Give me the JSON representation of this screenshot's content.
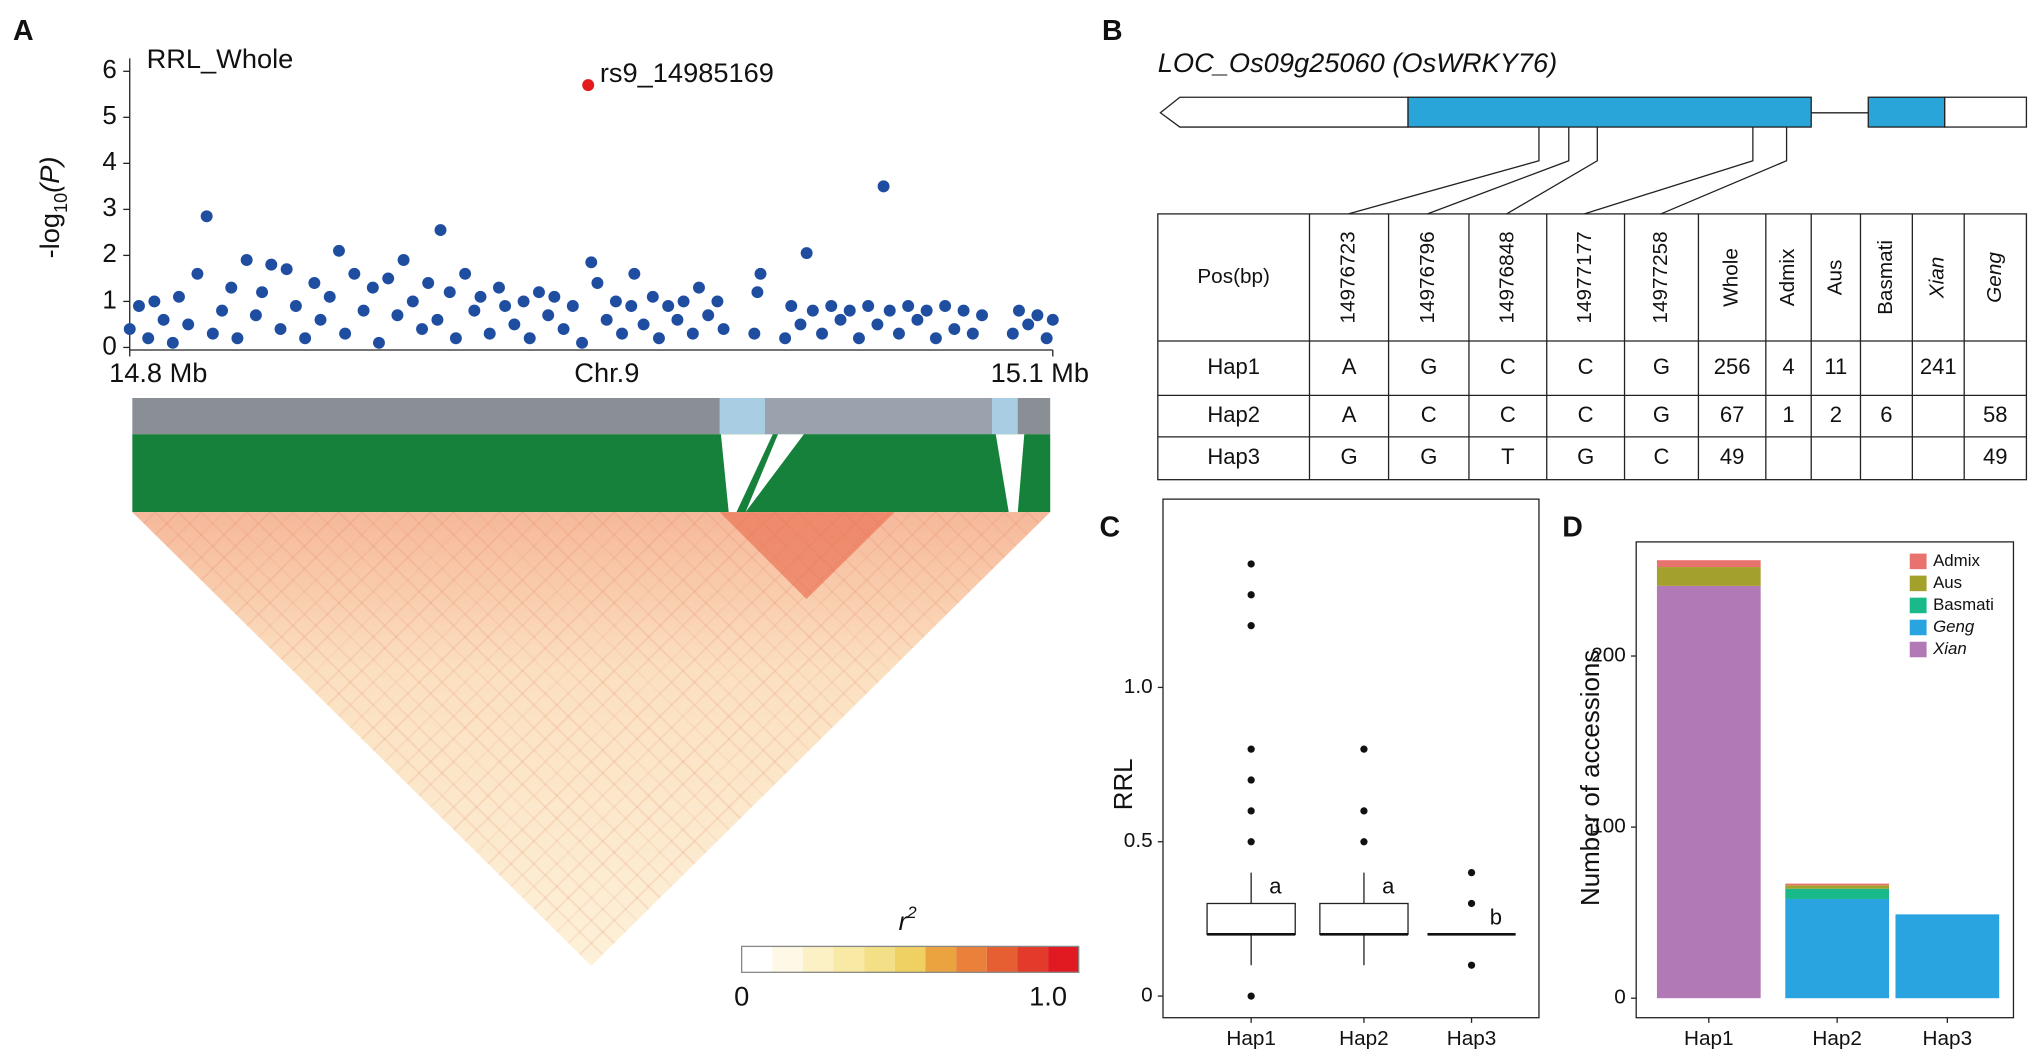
{
  "panels": [
    "A",
    "B",
    "C",
    "D"
  ],
  "chart_data": [
    {
      "type": "scatter",
      "title": "RRL_Whole",
      "xlabel": "Chr.9",
      "ylabel": [
        "-log",
        "10",
        "(P)"
      ],
      "xlim": [
        14.8,
        15.1
      ],
      "xticks": [
        {
          "value": 14.8,
          "label": "14.8 Mb"
        },
        {
          "value": 15.1,
          "label": "15.1 Mb"
        }
      ],
      "ylim": [
        0,
        6
      ],
      "yticks": [
        0,
        1,
        2,
        3,
        4,
        5,
        6
      ],
      "color": "#1f4ea1",
      "x": [
        14.8,
        14.803,
        14.806,
        14.808,
        14.811,
        14.814,
        14.816,
        14.819,
        14.822,
        14.825,
        14.827,
        14.83,
        14.833,
        14.835,
        14.838,
        14.841,
        14.843,
        14.846,
        14.849,
        14.851,
        14.854,
        14.857,
        14.86,
        14.862,
        14.865,
        14.868,
        14.87,
        14.873,
        14.876,
        14.879,
        14.881,
        14.884,
        14.887,
        14.889,
        14.892,
        14.895,
        14.897,
        14.9,
        14.901,
        14.904,
        14.906,
        14.909,
        14.912,
        14.914,
        14.917,
        14.92,
        14.922,
        14.925,
        14.928,
        14.93,
        14.933,
        14.936,
        14.938,
        14.941,
        14.944,
        14.947,
        14.95,
        14.952,
        14.955,
        14.958,
        14.96,
        14.963,
        14.964,
        14.967,
        14.97,
        14.972,
        14.975,
        14.978,
        14.98,
        14.983,
        14.985,
        14.988,
        14.991,
        14.993,
        15.003,
        15.004,
        15.005,
        15.013,
        15.015,
        15.018,
        15.02,
        15.022,
        15.025,
        15.028,
        15.031,
        15.034,
        15.037,
        15.04,
        15.043,
        15.045,
        15.047,
        15.05,
        15.053,
        15.056,
        15.059,
        15.062,
        15.065,
        15.068,
        15.071,
        15.074,
        15.077,
        15.087,
        15.089,
        15.092,
        15.095,
        15.098,
        15.1
      ],
      "values": [
        0.4,
        0.9,
        0.2,
        1.0,
        0.6,
        0.1,
        1.1,
        0.5,
        1.6,
        2.85,
        0.3,
        0.8,
        1.3,
        0.2,
        1.9,
        0.7,
        1.2,
        1.8,
        0.4,
        1.7,
        0.9,
        0.2,
        1.4,
        0.6,
        1.1,
        2.1,
        0.3,
        1.6,
        0.8,
        1.3,
        0.1,
        1.5,
        0.7,
        1.9,
        1.0,
        0.4,
        1.4,
        0.6,
        2.55,
        1.2,
        0.2,
        1.6,
        0.8,
        1.1,
        0.3,
        1.3,
        0.9,
        0.5,
        1.0,
        0.2,
        1.2,
        0.7,
        1.1,
        0.4,
        0.9,
        0.1,
        1.85,
        1.4,
        0.6,
        1.0,
        0.3,
        0.9,
        1.6,
        0.5,
        1.1,
        0.2,
        0.9,
        0.6,
        1.0,
        0.3,
        1.3,
        0.7,
        1.0,
        0.4,
        0.3,
        1.2,
        1.6,
        0.2,
        0.9,
        0.5,
        2.05,
        0.8,
        0.3,
        0.9,
        0.6,
        0.8,
        0.2,
        0.9,
        0.5,
        3.5,
        0.8,
        0.3,
        0.9,
        0.6,
        0.8,
        0.2,
        0.9,
        0.4,
        0.8,
        0.3,
        0.7,
        0.3,
        0.8,
        0.5,
        0.7,
        0.2,
        0.6
      ],
      "highlight": {
        "label": "rs9_14985169",
        "x": 14.949,
        "value": 5.7,
        "color": "#e3191c"
      },
      "colorbar": {
        "title": [
          "r",
          "2"
        ],
        "ticks": [
          0,
          {
            "value": 1,
            "label": "1.0"
          }
        ],
        "colors": [
          "#ffffff",
          "#fdf9e6",
          "#fbf1c4",
          "#f8e9a4",
          "#f3df85",
          "#eed162",
          "#eba33f",
          "#e9813a",
          "#e55f33",
          "#e33b2b",
          "#e11a22"
        ]
      }
    },
    {
      "type": "box",
      "ylabel": "RRL",
      "categories": [
        "Hap1",
        "Hap2",
        "Hap3"
      ],
      "ylim": [
        -0.07,
        1.61
      ],
      "yticks": [
        0,
        0.5,
        {
          "value": 1,
          "label": "1.0"
        }
      ],
      "boxes": [
        {
          "q1": 0.2,
          "median": 0.2,
          "q3": 0.3,
          "whisker_low": 0.1,
          "whisker_high": 0.4,
          "outliers": [
            0,
            0.5,
            0.6,
            0.7,
            0.8,
            1.2,
            1.3,
            1.4
          ]
        },
        {
          "q1": 0.2,
          "median": 0.2,
          "q3": 0.3,
          "whisker_low": 0.1,
          "whisker_high": 0.4,
          "outliers": [
            0.5,
            0.6,
            0.8
          ]
        },
        {
          "q1": 0.2,
          "median": 0.2,
          "q3": 0.2,
          "whisker_low": 0.2,
          "whisker_high": 0.2,
          "outliers": [
            0.1,
            0.3,
            0.4
          ]
        }
      ],
      "annotations": [
        "a",
        "a",
        "b"
      ]
    },
    {
      "type": "stacked_bar",
      "ylabel": "Number of accessions",
      "categories": [
        "Hap1",
        "Hap2",
        "Hap3"
      ],
      "ylim": [
        -11.4,
        266.7
      ],
      "yticks": [
        0,
        100,
        200
      ],
      "legend": "top-right",
      "series": [
        {
          "name": "Admix",
          "color": "#e8726e",
          "italic": false,
          "values": [
            4,
            1,
            null
          ]
        },
        {
          "name": "Aus",
          "color": "#a3a02c",
          "italic": false,
          "values": [
            11,
            2,
            null
          ]
        },
        {
          "name": "Basmati",
          "color": "#1ab98a",
          "italic": false,
          "values": [
            null,
            6,
            null
          ]
        },
        {
          "name": "Geng",
          "color": "#29a4e0",
          "italic": true,
          "values": [
            null,
            58,
            49
          ]
        },
        {
          "name": "Xian",
          "color": "#b179b5",
          "italic": true,
          "values": [
            241,
            null,
            null
          ]
        }
      ]
    }
  ],
  "gene": {
    "title": "LOC_Os09g25060 (OsWRKY76)"
  },
  "table": {
    "header": [
      "Pos(bp)",
      "14976723",
      "14976796",
      "14976848",
      "14977177",
      "14977258",
      "Whole",
      "Admix",
      "Aus",
      "Basmati",
      "Xian",
      "Geng"
    ],
    "italic_columns": [
      10,
      11
    ],
    "rows": [
      [
        "Hap1",
        "A",
        "G",
        "C",
        "C",
        "G",
        "256",
        "4",
        "11",
        null,
        "241",
        null
      ],
      [
        "Hap2",
        "A",
        "C",
        "C",
        "C",
        "G",
        "67",
        "1",
        "2",
        "6",
        null,
        "58"
      ],
      [
        "Hap3",
        "G",
        "G",
        "T",
        "G",
        "C",
        "49",
        null,
        null,
        null,
        null,
        "49"
      ]
    ]
  }
}
